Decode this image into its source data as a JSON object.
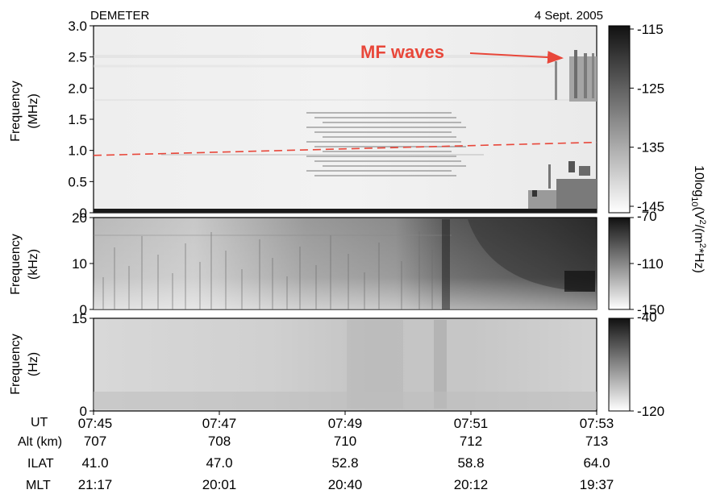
{
  "chart_data": [
    {
      "type": "heatmap",
      "instrument": "DEMETER",
      "date": "4 Sept. 2005",
      "ylabel": [
        "Frequency",
        "(MHz)"
      ],
      "ylim": [
        0,
        3.0
      ],
      "yticks": [
        "3.0",
        "2.5",
        "2.0",
        "1.5",
        "1.0",
        "0.5",
        "0"
      ],
      "ytick_values": [
        3.0,
        2.5,
        2.0,
        1.5,
        1.0,
        0.5,
        0
      ],
      "colorbar": {
        "labels": [
          "-115",
          "-125",
          "-135",
          "-145"
        ],
        "values": [
          -115,
          -125,
          -135,
          -145
        ]
      },
      "annotation": "MF waves",
      "dashed_line": {
        "x": [
          "07:45",
          "07:53"
        ],
        "y": [
          0.92,
          1.13
        ],
        "color": "#e8473a"
      }
    },
    {
      "type": "heatmap",
      "ylabel": [
        "Frequency",
        "(kHz)"
      ],
      "ylim": [
        0,
        20
      ],
      "yticks": [
        "20",
        "10",
        "0"
      ],
      "ytick_values": [
        20,
        10,
        0
      ],
      "colorbar": {
        "labels": [
          "-70",
          "-110",
          "-150"
        ],
        "values": [
          -70,
          -110,
          -150
        ]
      }
    },
    {
      "type": "heatmap",
      "ylabel": [
        "Frequency",
        "(Hz)"
      ],
      "ylim": [
        0,
        15
      ],
      "yticks": [
        "15",
        "0"
      ],
      "ytick_values": [
        15,
        0
      ],
      "colorbar": {
        "labels": [
          "-40",
          "-120"
        ],
        "values": [
          -40,
          -120
        ]
      }
    }
  ],
  "colorbar_title": "10log",
  "colorbar_title_sub": "10",
  "colorbar_title_rest": "(V",
  "colorbar_title_sup": "2",
  "colorbar_title_rest2": "/(m",
  "colorbar_title_sup2": "2",
  "colorbar_title_end": "*Hz)",
  "x_axis": {
    "rows": [
      {
        "label": "UT",
        "values": [
          "07:45",
          "07:47",
          "07:49",
          "07:51",
          "07:53"
        ]
      },
      {
        "label": "Alt (km)",
        "values": [
          "707",
          "708",
          "710",
          "712",
          "713"
        ]
      },
      {
        "label": "ILAT",
        "values": [
          "41.0",
          "47.0",
          "52.8",
          "58.8",
          "64.0"
        ]
      },
      {
        "label": "MLT",
        "values": [
          "21:17",
          "20:01",
          "20:40",
          "20:12",
          "19:37"
        ]
      }
    ]
  }
}
